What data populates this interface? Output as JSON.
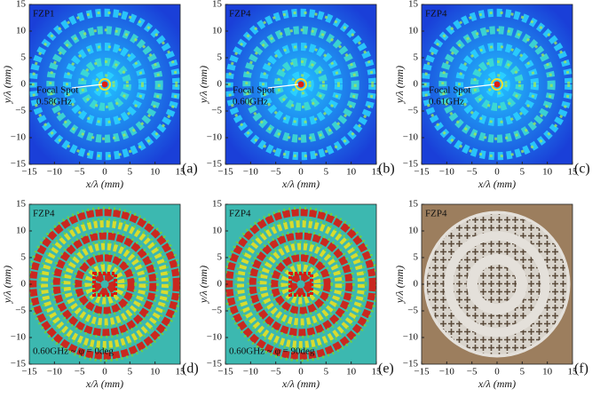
{
  "chart_data": [
    {
      "type": "heatmap",
      "title": "FZP1",
      "xlabel": "x/λ (mm)",
      "ylabel": "y/λ (mm)",
      "panel_label": "(a)",
      "annotations": [
        "Focal Spot",
        "0.58GHz"
      ],
      "xlim": [
        -15,
        15
      ],
      "ylim": [
        -15,
        15
      ],
      "xticks": [
        {
          "value": -15,
          "label": "−15"
        },
        {
          "value": -10,
          "label": "−10"
        },
        {
          "value": -5,
          "label": "−5"
        },
        0,
        5,
        10,
        15
      ],
      "yticks": [
        {
          "value": -15,
          "label": "−15"
        },
        {
          "value": -10,
          "label": "−10"
        },
        {
          "value": -5,
          "label": "−5"
        },
        0,
        5,
        10,
        15
      ]
    },
    {
      "type": "heatmap",
      "title": "FZP4",
      "xlabel": "x/λ (mm)",
      "ylabel": "y/λ (mm)",
      "panel_label": "(b)",
      "annotations": [
        "Focal Spot",
        "0.60GHz"
      ],
      "xlim": [
        -15,
        15
      ],
      "ylim": [
        -15,
        15
      ],
      "xticks": [
        {
          "value": -15,
          "label": "−15"
        },
        {
          "value": -10,
          "label": "−10"
        },
        {
          "value": -5,
          "label": "−5"
        },
        0,
        5,
        10,
        15
      ],
      "yticks": [
        {
          "value": -15,
          "label": "−15"
        },
        {
          "value": -10,
          "label": "−10"
        },
        {
          "value": -5,
          "label": "−5"
        },
        0,
        5,
        10,
        15
      ]
    },
    {
      "type": "heatmap",
      "title": "FZP4",
      "xlabel": "x/λ (mm)",
      "ylabel": "y/λ (mm)",
      "panel_label": "(c)",
      "annotations": [
        "Focal Spot",
        "0.61GHz"
      ],
      "xlim": [
        -15,
        15
      ],
      "ylim": [
        -15,
        15
      ],
      "xticks": [
        {
          "value": -15,
          "label": "−15"
        },
        {
          "value": -10,
          "label": "−10"
        },
        {
          "value": -5,
          "label": "−5"
        },
        0,
        5,
        10,
        15
      ],
      "yticks": [
        {
          "value": -15,
          "label": "−15"
        },
        {
          "value": -10,
          "label": "−10"
        },
        {
          "value": -5,
          "label": "−5"
        },
        0,
        5,
        10,
        15
      ]
    },
    {
      "type": "phasemap",
      "title": "FZP4",
      "xlabel": "x/λ (mm)",
      "ylabel": "y/λ (mm)",
      "panel_label": "(d)",
      "annotations": [
        "0.60GHz ~ φ = 0deg"
      ],
      "xlim": [
        -15,
        15
      ],
      "ylim": [
        -15,
        15
      ],
      "xticks": [
        {
          "value": -15,
          "label": "−15"
        },
        {
          "value": -10,
          "label": "−10"
        },
        {
          "value": -5,
          "label": "−5"
        },
        0,
        5,
        10,
        15
      ],
      "yticks": [
        {
          "value": -15,
          "label": "−15"
        },
        {
          "value": -10,
          "label": "−10"
        },
        {
          "value": -5,
          "label": "−5"
        },
        0,
        5,
        10,
        15
      ]
    },
    {
      "type": "phasemap",
      "title": "FZP4",
      "xlabel": "x/λ (mm)",
      "ylabel": "y/λ (mm)",
      "panel_label": "(e)",
      "annotations": [
        "0.60GHz ~ φ = 90deg"
      ],
      "xlim": [
        -15,
        15
      ],
      "ylim": [
        -15,
        15
      ],
      "xticks": [
        {
          "value": -15,
          "label": "−15"
        },
        {
          "value": -10,
          "label": "−10"
        },
        {
          "value": -5,
          "label": "−5"
        },
        0,
        5,
        10,
        15
      ],
      "yticks": [
        {
          "value": -15,
          "label": "−15"
        },
        {
          "value": -10,
          "label": "−10"
        },
        {
          "value": -5,
          "label": "−5"
        },
        0,
        5,
        10,
        15
      ]
    },
    {
      "type": "image",
      "title": "FZP4",
      "xlabel": "x/λ (mm)",
      "ylabel": "y/λ (mm)",
      "panel_label": "(f)",
      "annotations": [],
      "xlim": [
        -15,
        15
      ],
      "ylim": [
        -15,
        15
      ],
      "xticks": [
        {
          "value": -15,
          "label": "−15"
        },
        {
          "value": -10,
          "label": "−10"
        },
        {
          "value": -5,
          "label": "−5"
        },
        0,
        5,
        10,
        15
      ],
      "yticks": [
        {
          "value": -15,
          "label": "−15"
        },
        {
          "value": -10,
          "label": "−10"
        },
        {
          "value": -5,
          "label": "−5"
        },
        0,
        5,
        10,
        15
      ]
    }
  ]
}
